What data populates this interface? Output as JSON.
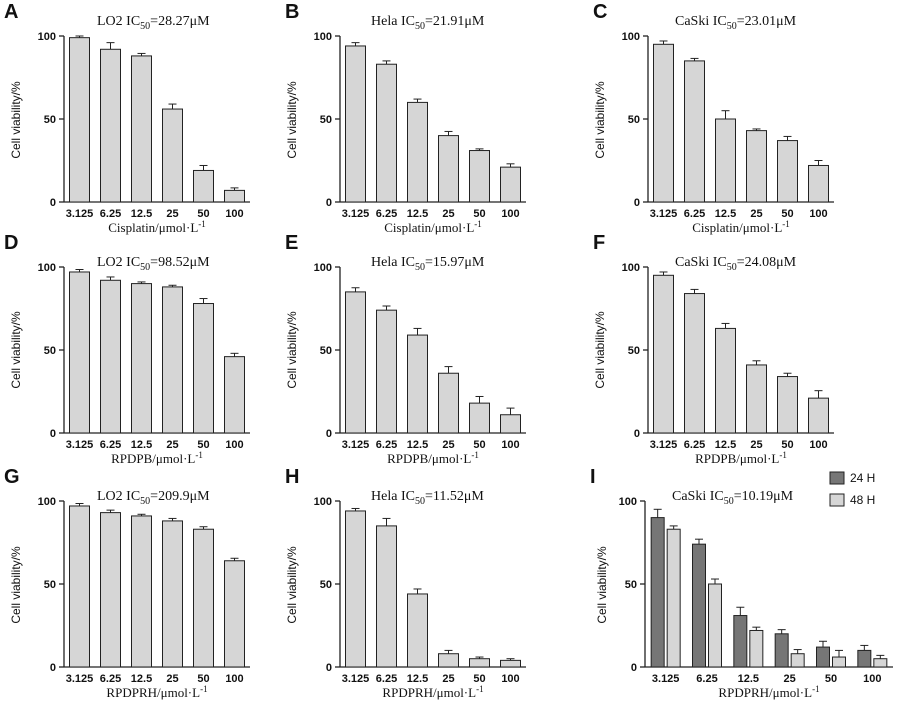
{
  "chart_data": [
    {
      "letter": "A",
      "title": "LO2",
      "ic_label": "IC",
      "ic_sub": "50",
      "ic_value": "=28.27μM",
      "type": "bar",
      "ylabel": "Cell viability/%",
      "xlabel": "Cisplatin/μmol·L",
      "xlabel_sup": "-1",
      "yticks": [
        0,
        50,
        100
      ],
      "ylim": [
        0,
        100
      ],
      "categories": [
        "3.125",
        "6.25",
        "12.5",
        "25",
        "50",
        "100"
      ],
      "series": [
        {
          "name": "",
          "values": [
            99,
            92,
            88,
            56,
            19,
            7
          ],
          "errors": [
            1,
            4,
            1.5,
            3,
            3,
            1.5
          ]
        }
      ]
    },
    {
      "letter": "B",
      "title": "Hela",
      "ic_label": "IC",
      "ic_sub": "50",
      "ic_value": "=21.91μM",
      "type": "bar",
      "ylabel": "Cell viability/%",
      "xlabel": "Cisplatin/μmol·L",
      "xlabel_sup": "-1",
      "yticks": [
        0,
        50,
        100
      ],
      "ylim": [
        0,
        100
      ],
      "categories": [
        "3.125",
        "6.25",
        "12.5",
        "25",
        "50",
        "100"
      ],
      "series": [
        {
          "name": "",
          "values": [
            94,
            83,
            60,
            40,
            31,
            21
          ],
          "errors": [
            2,
            2,
            2,
            2.5,
            1,
            2
          ]
        }
      ]
    },
    {
      "letter": "C",
      "title": "CaSki",
      "ic_label": "IC",
      "ic_sub": "50",
      "ic_value": "=23.01μM",
      "type": "bar",
      "ylabel": "Cell viability/%",
      "xlabel": "Cisplatin/μmol·L",
      "xlabel_sup": "-1",
      "yticks": [
        0,
        50,
        100
      ],
      "ylim": [
        0,
        100
      ],
      "categories": [
        "3.125",
        "6.25",
        "12.5",
        "25",
        "50",
        "100"
      ],
      "series": [
        {
          "name": "",
          "values": [
            95,
            85,
            50,
            43,
            37,
            22
          ],
          "errors": [
            2,
            1.5,
            5,
            1,
            2.5,
            3
          ]
        }
      ]
    },
    {
      "letter": "D",
      "title": "LO2",
      "ic_label": "IC",
      "ic_sub": "50",
      "ic_value": "=98.52μM",
      "type": "bar",
      "ylabel": "Cell viability/%",
      "xlabel": "RPDPB/μmol·L",
      "xlabel_sup": "-1",
      "yticks": [
        0,
        50,
        100
      ],
      "ylim": [
        0,
        100
      ],
      "categories": [
        "3.125",
        "6.25",
        "12.5",
        "25",
        "50",
        "100"
      ],
      "series": [
        {
          "name": "",
          "values": [
            97,
            92,
            90,
            88,
            78,
            46
          ],
          "errors": [
            1.5,
            2,
            1,
            1,
            3,
            2
          ]
        }
      ]
    },
    {
      "letter": "E",
      "title": "Hela",
      "ic_label": "IC",
      "ic_sub": "50",
      "ic_value": "=15.97μM",
      "type": "bar",
      "ylabel": "Cell viability/%",
      "xlabel": "RPDPB/μmol·L",
      "xlabel_sup": "-1",
      "yticks": [
        0,
        50,
        100
      ],
      "ylim": [
        0,
        100
      ],
      "categories": [
        "3.125",
        "6.25",
        "12.5",
        "25",
        "50",
        "100"
      ],
      "series": [
        {
          "name": "",
          "values": [
            85,
            74,
            59,
            36,
            18,
            11
          ],
          "errors": [
            2.5,
            2.5,
            4,
            4,
            4,
            4
          ]
        }
      ]
    },
    {
      "letter": "F",
      "title": "CaSki",
      "ic_label": "IC",
      "ic_sub": "50",
      "ic_value": "=24.08μM",
      "type": "bar",
      "ylabel": "Cell viability/%",
      "xlabel": "RPDPB/μmol·L",
      "xlabel_sup": "-1",
      "yticks": [
        0,
        50,
        100
      ],
      "ylim": [
        0,
        100
      ],
      "categories": [
        "3.125",
        "6.25",
        "12.5",
        "25",
        "50",
        "100"
      ],
      "series": [
        {
          "name": "",
          "values": [
            95,
            84,
            63,
            41,
            34,
            21
          ],
          "errors": [
            2,
            2.5,
            3,
            2.5,
            2,
            4.5
          ]
        }
      ]
    },
    {
      "letter": "G",
      "title": "LO2",
      "ic_label": "IC",
      "ic_sub": "50",
      "ic_value": "=209.9μM",
      "type": "bar",
      "ylabel": "Cell viability/%",
      "xlabel": "RPDPRH/μmol·L",
      "xlabel_sup": "-1",
      "yticks": [
        0,
        50,
        100
      ],
      "ylim": [
        0,
        100
      ],
      "categories": [
        "3.125",
        "6.25",
        "12.5",
        "25",
        "50",
        "100"
      ],
      "series": [
        {
          "name": "",
          "values": [
            97,
            93,
            91,
            88,
            83,
            64
          ],
          "errors": [
            1.5,
            1.5,
            1,
            1.5,
            1.5,
            1.5
          ]
        }
      ]
    },
    {
      "letter": "H",
      "title": "Hela",
      "ic_label": "IC",
      "ic_sub": "50",
      "ic_value": "=11.52μM",
      "type": "bar",
      "ylabel": "Cell viability/%",
      "xlabel": "RPDPRH/μmol·L",
      "xlabel_sup": "-1",
      "yticks": [
        0,
        50,
        100
      ],
      "ylim": [
        0,
        100
      ],
      "categories": [
        "3.125",
        "6.25",
        "12.5",
        "25",
        "50",
        "100"
      ],
      "series": [
        {
          "name": "",
          "values": [
            94,
            85,
            44,
            8,
            5,
            4
          ],
          "errors": [
            1.5,
            4.5,
            3,
            2,
            1,
            1
          ]
        }
      ]
    },
    {
      "letter": "I",
      "title": "CaSki",
      "ic_label": "IC",
      "ic_sub": "50",
      "ic_value": "=10.19μM",
      "type": "bar",
      "ylabel": "Cell viability/%",
      "xlabel": "RPDPRH/μmol·L",
      "xlabel_sup": "-1",
      "yticks": [
        0,
        50,
        100
      ],
      "ylim": [
        0,
        100
      ],
      "categories": [
        "3.125",
        "6.25",
        "12.5",
        "25",
        "50",
        "100"
      ],
      "legend_position": "top-right",
      "series": [
        {
          "name": "24 H",
          "values": [
            90,
            74,
            31,
            20,
            12,
            10
          ],
          "errors": [
            5,
            3,
            5,
            2.5,
            3.5,
            3
          ]
        },
        {
          "name": "48 H",
          "values": [
            83,
            50,
            22,
            8,
            6,
            5
          ],
          "errors": [
            2,
            3,
            2,
            2.5,
            4,
            2
          ]
        }
      ]
    }
  ],
  "colors": {
    "bar_light": "#d6d6d6",
    "bar_dark": "#767676",
    "stroke": "#222222",
    "text": "#111111"
  }
}
